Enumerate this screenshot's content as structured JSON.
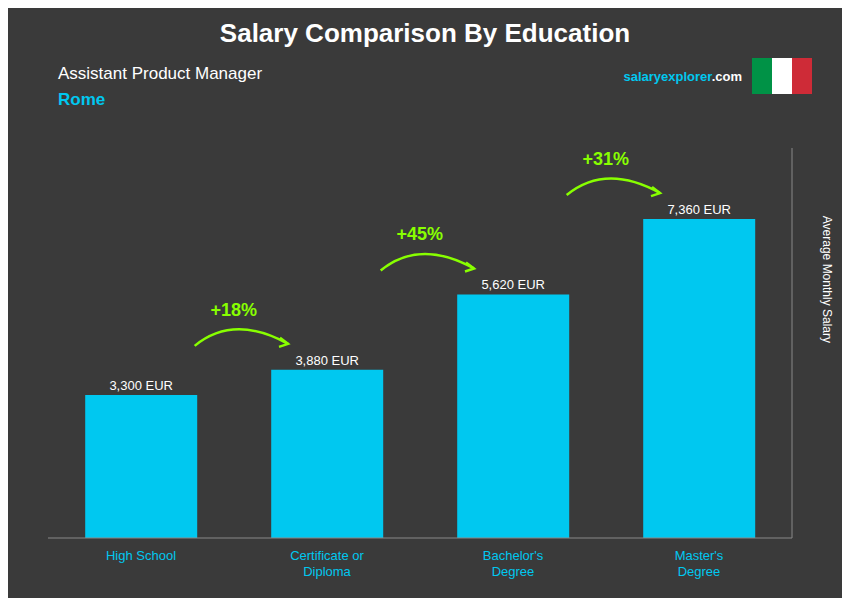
{
  "chart_data": {
    "type": "bar",
    "title": "Salary Comparison By Education",
    "subtitle": "Assistant Product Manager",
    "city": {
      "text": "Rome",
      "color": "#00c8f0"
    },
    "website": [
      {
        "text": "salary",
        "color": "#00c8f0"
      },
      {
        "text": "explorer",
        "color": "#00c8f0"
      },
      {
        "text": ".com",
        "color": "#ffffff"
      }
    ],
    "y_label": "Average Monthly Salary",
    "categories": [
      "High School",
      "Certificate or\nDiploma",
      "Bachelor's\nDegree",
      "Master's\nDegree"
    ],
    "values": [
      3300,
      3880,
      5620,
      7360
    ],
    "value_labels": [
      "3,300 EUR",
      "3,880 EUR",
      "5,620 EUR",
      "7,360 EUR"
    ],
    "color": "#00c8f0",
    "ylim": [
      0,
      9000
    ],
    "grid": false,
    "data_labels": true,
    "tick_labels": "x",
    "annotations": [
      {
        "text": "+18%",
        "color": "#88ff00"
      },
      {
        "text": "+45%",
        "color": "#88ff00"
      },
      {
        "text": "+31%",
        "color": "#88ff00"
      }
    ],
    "background": "#3a3a3a",
    "text_color": "#ffffff",
    "flag": [
      "#009246",
      "#ffffff",
      "#ce2b37"
    ]
  }
}
